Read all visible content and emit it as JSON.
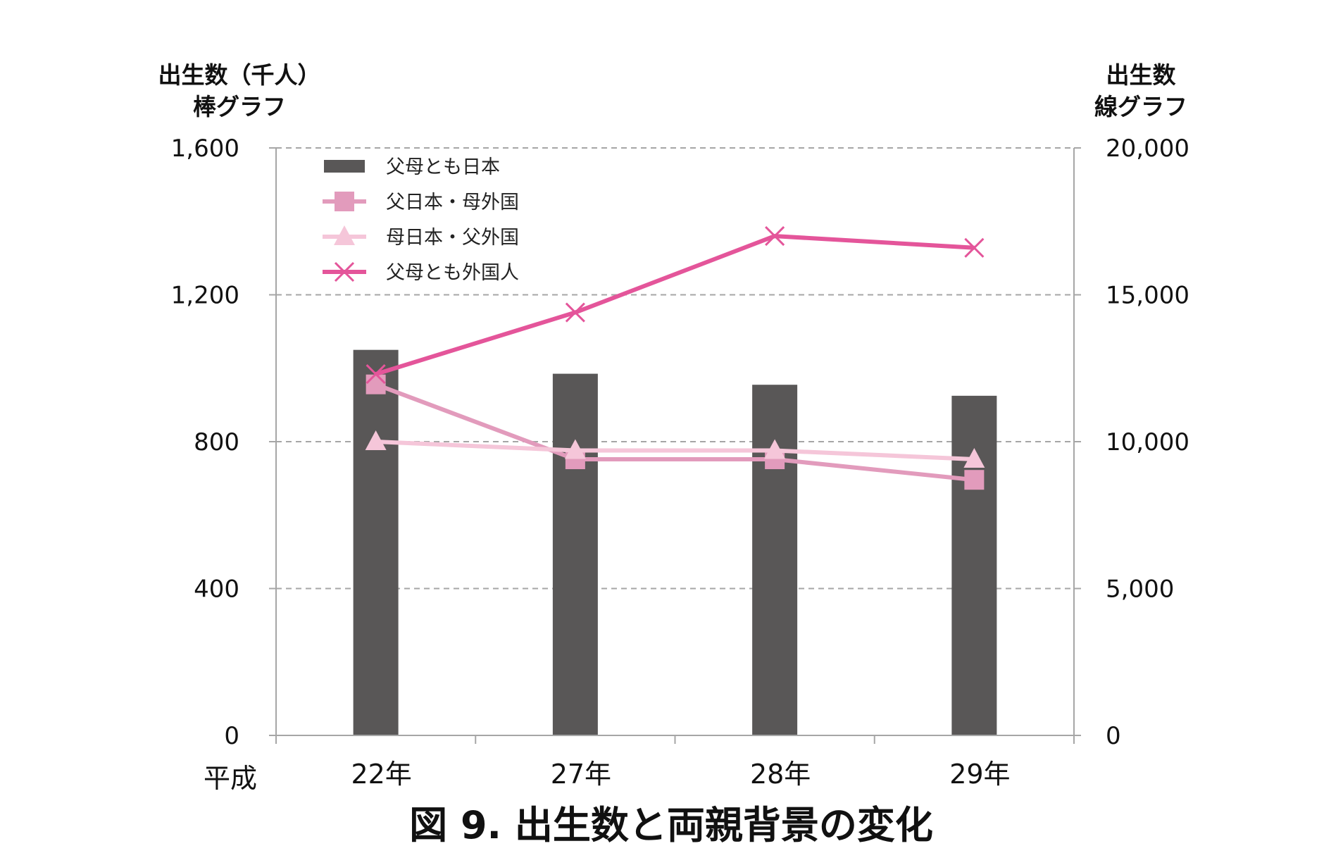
{
  "chart_data": {
    "type": "bar",
    "title": "",
    "caption": "図 9.  出生数と両親背景の変化",
    "x_prefix": "平成",
    "categories": [
      "22年",
      "27年",
      "28年",
      "29年"
    ],
    "y_left": {
      "label_line1": "出生数（千人）",
      "label_line2": "棒グラフ",
      "ylim": [
        0,
        1600
      ],
      "ticks": [
        0,
        400,
        800,
        1200,
        1600
      ],
      "tick_labels": [
        "0",
        "400",
        "800",
        "1,200",
        "1,600"
      ]
    },
    "y_right": {
      "label_line1": "出生数",
      "label_line2": "線グラフ",
      "ylim": [
        0,
        20000
      ],
      "ticks": [
        0,
        5000,
        10000,
        15000,
        20000
      ],
      "tick_labels": [
        "0",
        "5,000",
        "10,000",
        "15,000",
        "20,000"
      ]
    },
    "grid": "horizontal-dashed",
    "legend_position": "top-left",
    "bars": {
      "name": "父母とも日本",
      "axis": "left",
      "color": "#595757",
      "values": [
        1050,
        985,
        955,
        925
      ]
    },
    "series": [
      {
        "name": "父日本・母外国",
        "axis": "right",
        "marker": "square",
        "color": "#e29bbc",
        "values": [
          11950,
          9400,
          9400,
          8700
        ]
      },
      {
        "name": "母日本・父外国",
        "axis": "right",
        "marker": "triangle",
        "color": "#f5c6d9",
        "values": [
          10000,
          9700,
          9700,
          9400
        ]
      },
      {
        "name": "父母とも外国人",
        "axis": "right",
        "marker": "x",
        "color": "#e4559a",
        "values": [
          12300,
          14400,
          17000,
          16600
        ]
      }
    ]
  }
}
